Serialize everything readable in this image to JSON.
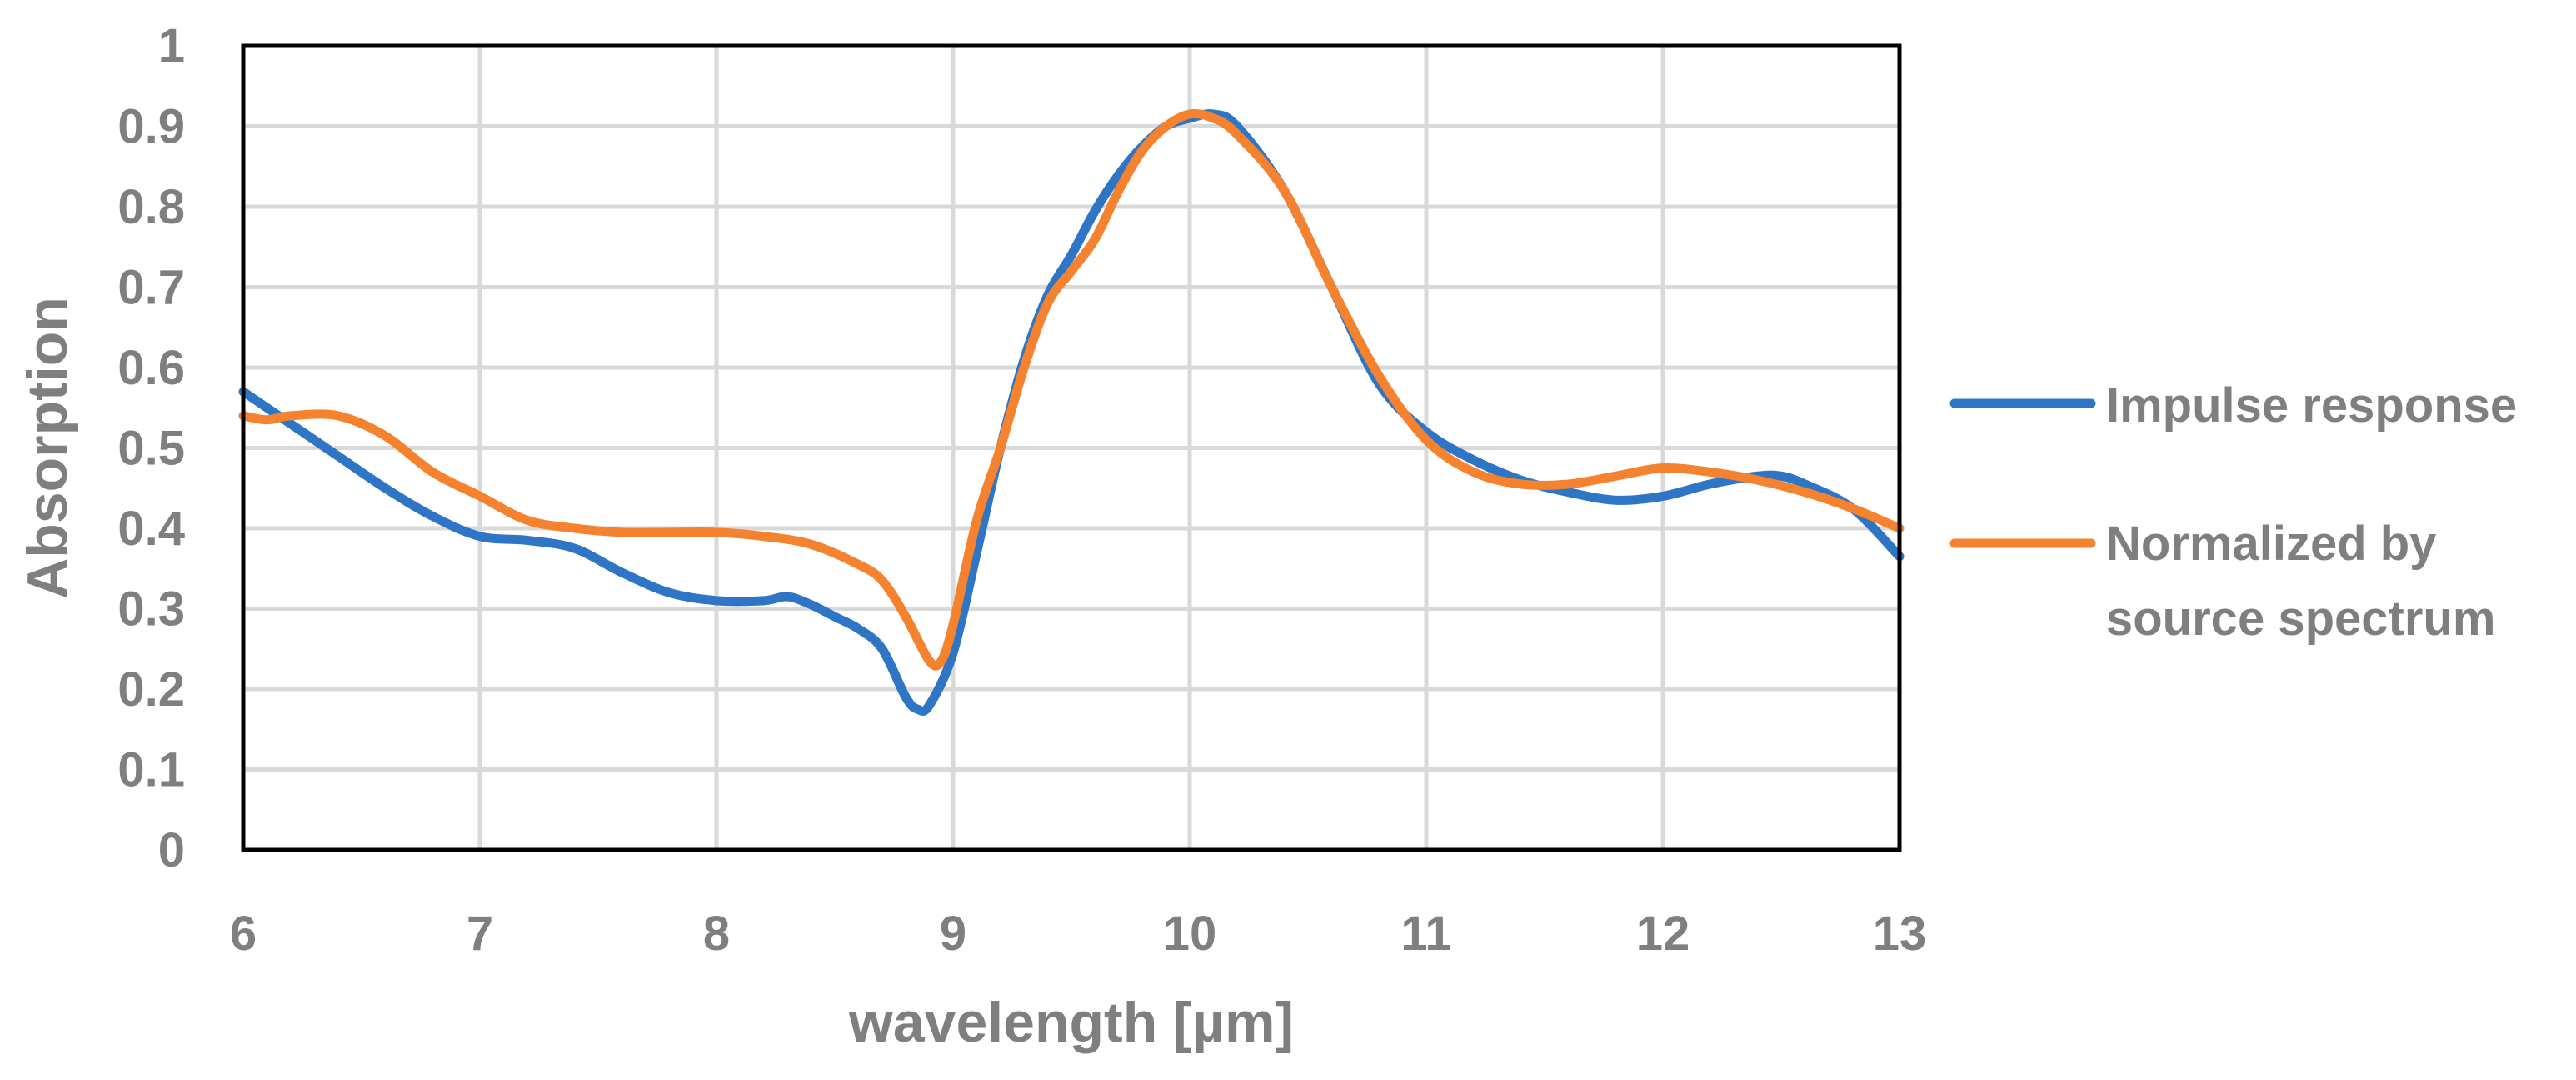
{
  "chart_data": {
    "type": "line",
    "title": "",
    "xlabel": "wavelength [µm]",
    "ylabel": "Absorption",
    "xlim": [
      6,
      13
    ],
    "ylim": [
      0,
      1
    ],
    "xticks": [
      6,
      7,
      8,
      9,
      10,
      11,
      12,
      13
    ],
    "yticks": [
      0,
      0.1,
      0.2,
      0.3,
      0.4,
      0.5,
      0.6,
      0.7,
      0.8,
      0.9,
      1
    ],
    "ytick_labels": [
      "0",
      "0.1",
      "0.2",
      "0.3",
      "0.4",
      "0.5",
      "0.6",
      "0.7",
      "0.8",
      "0.9",
      "1"
    ],
    "grid": true,
    "legend_position": "right",
    "series": [
      {
        "name": "Impulse response",
        "color": "#2e75c5",
        "x": [
          6.0,
          6.2,
          6.4,
          6.6,
          6.8,
          7.0,
          7.2,
          7.4,
          7.6,
          7.8,
          8.0,
          8.2,
          8.3,
          8.4,
          8.5,
          8.6,
          8.7,
          8.8,
          8.85,
          8.9,
          9.0,
          9.1,
          9.2,
          9.3,
          9.4,
          9.5,
          9.6,
          9.7,
          9.8,
          9.9,
          10.0,
          10.1,
          10.2,
          10.4,
          10.6,
          10.8,
          11.0,
          11.2,
          11.4,
          11.6,
          11.8,
          12.0,
          12.2,
          12.4,
          12.5,
          12.6,
          12.8,
          13.0
        ],
        "y": [
          0.57,
          0.53,
          0.49,
          0.45,
          0.415,
          0.39,
          0.385,
          0.375,
          0.345,
          0.32,
          0.31,
          0.31,
          0.315,
          0.305,
          0.29,
          0.275,
          0.25,
          0.19,
          0.175,
          0.18,
          0.245,
          0.37,
          0.5,
          0.61,
          0.69,
          0.74,
          0.795,
          0.84,
          0.875,
          0.9,
          0.91,
          0.915,
          0.9,
          0.82,
          0.7,
          0.58,
          0.52,
          0.485,
          0.46,
          0.445,
          0.435,
          0.44,
          0.455,
          0.465,
          0.465,
          0.455,
          0.425,
          0.365
        ]
      },
      {
        "name": "Normalized by source spectrum",
        "color": "#f5822f",
        "x": [
          6.0,
          6.1,
          6.2,
          6.4,
          6.6,
          6.8,
          7.0,
          7.2,
          7.4,
          7.6,
          7.8,
          8.0,
          8.2,
          8.4,
          8.6,
          8.7,
          8.8,
          8.9,
          8.95,
          9.0,
          9.1,
          9.2,
          9.3,
          9.4,
          9.5,
          9.6,
          9.7,
          9.8,
          9.9,
          10.0,
          10.1,
          10.2,
          10.4,
          10.6,
          10.8,
          11.0,
          11.2,
          11.4,
          11.6,
          11.8,
          12.0,
          12.2,
          12.4,
          12.6,
          12.8,
          13.0
        ],
        "y": [
          0.54,
          0.535,
          0.54,
          0.54,
          0.515,
          0.47,
          0.44,
          0.41,
          0.4,
          0.395,
          0.395,
          0.395,
          0.39,
          0.38,
          0.355,
          0.335,
          0.29,
          0.235,
          0.235,
          0.28,
          0.41,
          0.5,
          0.6,
          0.68,
          0.72,
          0.76,
          0.82,
          0.87,
          0.9,
          0.915,
          0.91,
          0.89,
          0.82,
          0.7,
          0.59,
          0.51,
          0.47,
          0.455,
          0.455,
          0.465,
          0.475,
          0.47,
          0.46,
          0.445,
          0.425,
          0.4
        ]
      }
    ]
  }
}
